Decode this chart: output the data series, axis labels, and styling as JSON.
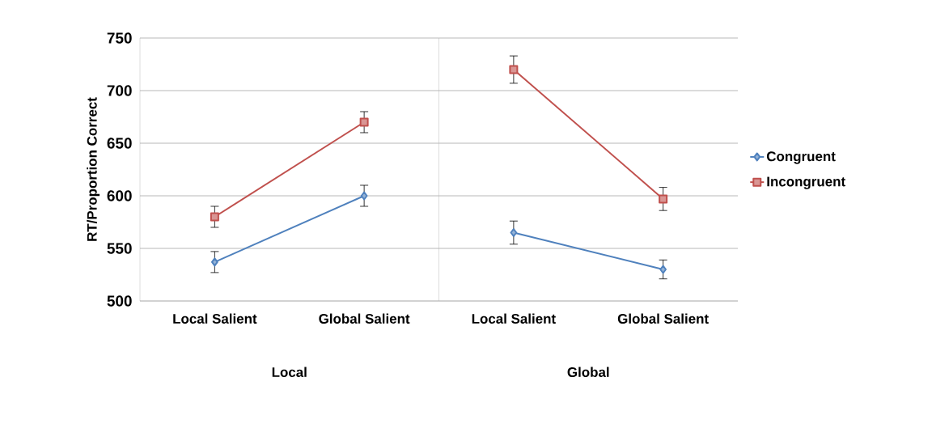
{
  "chart_data": [
    {
      "type": "line",
      "xlabel": "Local",
      "ylabel": "RT/Proportion Correct",
      "categories": [
        "Local Salient",
        "Global Salient"
      ],
      "ylim": [
        500,
        750
      ],
      "yticks": [
        500,
        550,
        600,
        650,
        700,
        750
      ],
      "grid": "y",
      "line_style": "solid",
      "legend": false,
      "series": [
        {
          "color": "#4f81bd",
          "marker": "diamond",
          "values": [
            537,
            600
          ],
          "errors": [
            10,
            10
          ]
        },
        {
          "color": "#c0504d",
          "marker": "square",
          "values": [
            580,
            670
          ],
          "errors": [
            10,
            10
          ]
        }
      ]
    },
    {
      "type": "line",
      "xlabel": "Global",
      "categories": [
        "Local Salient",
        "Global Salient"
      ],
      "ylim": [
        500,
        750
      ],
      "yticks": [
        500,
        550,
        600,
        650,
        700,
        750
      ],
      "grid": "y",
      "line_style": "solid",
      "legend": "right",
      "tick_labels": "x",
      "series": [
        {
          "name": "Congruent",
          "color": "#4f81bd",
          "marker": "diamond",
          "values": [
            565,
            530
          ],
          "errors": [
            11,
            9
          ]
        },
        {
          "name": "Incongruent",
          "color": "#c0504d",
          "marker": "square",
          "values": [
            720,
            597
          ],
          "errors": [
            13,
            11
          ]
        }
      ]
    }
  ]
}
